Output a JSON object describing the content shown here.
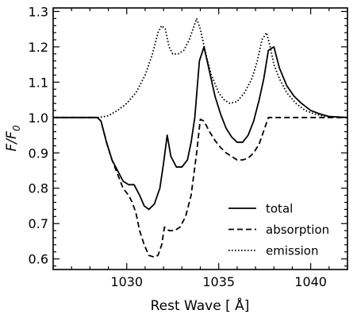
{
  "chart_data": {
    "type": "line",
    "title": "",
    "xlabel": "Rest Wave [ Å]",
    "ylabel": "F/F",
    "ylabel_subscript": "0",
    "xlim": [
      1026,
      1042
    ],
    "ylim": [
      0.57,
      1.31
    ],
    "xticks": [
      1030,
      1035,
      1040
    ],
    "xtick_labels": [
      "1030",
      "1035",
      "1040"
    ],
    "yticks": [
      0.6,
      0.7,
      0.8,
      0.9,
      1.0,
      1.1,
      1.2,
      1.3
    ],
    "ytick_labels": [
      "0.6",
      "0.7",
      "0.8",
      "0.9",
      "1.0",
      "1.1",
      "1.2",
      "1.3"
    ],
    "grid": false,
    "legend_position": "lower-right",
    "series": [
      {
        "name": "total",
        "style": "solid",
        "x": [
          1026,
          1028.4,
          1028.6,
          1028.9,
          1029.2,
          1029.5,
          1029.8,
          1030.1,
          1030.4,
          1030.7,
          1030.95,
          1031.2,
          1031.5,
          1031.8,
          1032.0,
          1032.2,
          1032.4,
          1032.7,
          1033.0,
          1033.3,
          1033.5,
          1033.7,
          1033.95,
          1034.2,
          1034.5,
          1034.8,
          1035.1,
          1035.4,
          1035.7,
          1036.0,
          1036.3,
          1036.6,
          1036.9,
          1037.2,
          1037.45,
          1037.7,
          1038.0,
          1038.3,
          1038.7,
          1039.1,
          1039.5,
          1040.0,
          1040.5,
          1041.0,
          1042
        ],
        "y": [
          1.0,
          1.0,
          0.99,
          0.93,
          0.88,
          0.85,
          0.82,
          0.81,
          0.81,
          0.78,
          0.75,
          0.74,
          0.755,
          0.8,
          0.87,
          0.95,
          0.89,
          0.86,
          0.86,
          0.88,
          0.93,
          1.0,
          1.16,
          1.2,
          1.13,
          1.06,
          1.01,
          0.97,
          0.945,
          0.93,
          0.93,
          0.95,
          0.99,
          1.05,
          1.11,
          1.19,
          1.2,
          1.14,
          1.09,
          1.06,
          1.04,
          1.02,
          1.01,
          1.003,
          1.0
        ]
      },
      {
        "name": "absorption",
        "style": "dashed",
        "x": [
          1026,
          1028.4,
          1028.6,
          1028.9,
          1029.2,
          1029.5,
          1029.8,
          1030.1,
          1030.3,
          1030.5,
          1030.7,
          1030.95,
          1031.2,
          1031.5,
          1031.7,
          1031.9,
          1032.05,
          1032.3,
          1032.6,
          1032.9,
          1033.2,
          1033.5,
          1033.8,
          1034.0,
          1034.2,
          1034.5,
          1034.8,
          1035.1,
          1035.4,
          1035.7,
          1036.0,
          1036.3,
          1036.6,
          1036.9,
          1037.2,
          1037.5,
          1037.7,
          1038.0,
          1039.0,
          1040.0,
          1042
        ],
        "y": [
          1.0,
          1.0,
          0.99,
          0.93,
          0.88,
          0.84,
          0.8,
          0.78,
          0.76,
          0.73,
          0.68,
          0.64,
          0.61,
          0.605,
          0.61,
          0.64,
          0.69,
          0.68,
          0.68,
          0.69,
          0.72,
          0.78,
          0.9,
          0.995,
          0.99,
          0.96,
          0.935,
          0.915,
          0.9,
          0.89,
          0.88,
          0.88,
          0.885,
          0.9,
          0.925,
          0.97,
          1.0,
          1.0,
          1.0,
          1.0,
          1.0
        ]
      },
      {
        "name": "emission",
        "style": "dotted",
        "x": [
          1026,
          1028.5,
          1029.0,
          1029.5,
          1030.0,
          1030.5,
          1031.0,
          1031.4,
          1031.7,
          1031.9,
          1032.1,
          1032.3,
          1032.5,
          1032.8,
          1033.1,
          1033.4,
          1033.6,
          1033.8,
          1034.0,
          1034.3,
          1034.6,
          1035.0,
          1035.3,
          1035.6,
          1036.0,
          1036.4,
          1036.8,
          1037.1,
          1037.35,
          1037.6,
          1037.8,
          1038.0,
          1038.3,
          1038.7,
          1039.2,
          1039.7,
          1040.2,
          1040.8,
          1042
        ],
        "y": [
          1.0,
          1.0,
          1.005,
          1.02,
          1.04,
          1.07,
          1.12,
          1.18,
          1.24,
          1.26,
          1.25,
          1.2,
          1.18,
          1.18,
          1.19,
          1.22,
          1.25,
          1.28,
          1.25,
          1.18,
          1.12,
          1.07,
          1.05,
          1.04,
          1.045,
          1.07,
          1.11,
          1.16,
          1.22,
          1.24,
          1.2,
          1.15,
          1.11,
          1.07,
          1.04,
          1.02,
          1.01,
          1.003,
          1.0
        ]
      }
    ]
  }
}
